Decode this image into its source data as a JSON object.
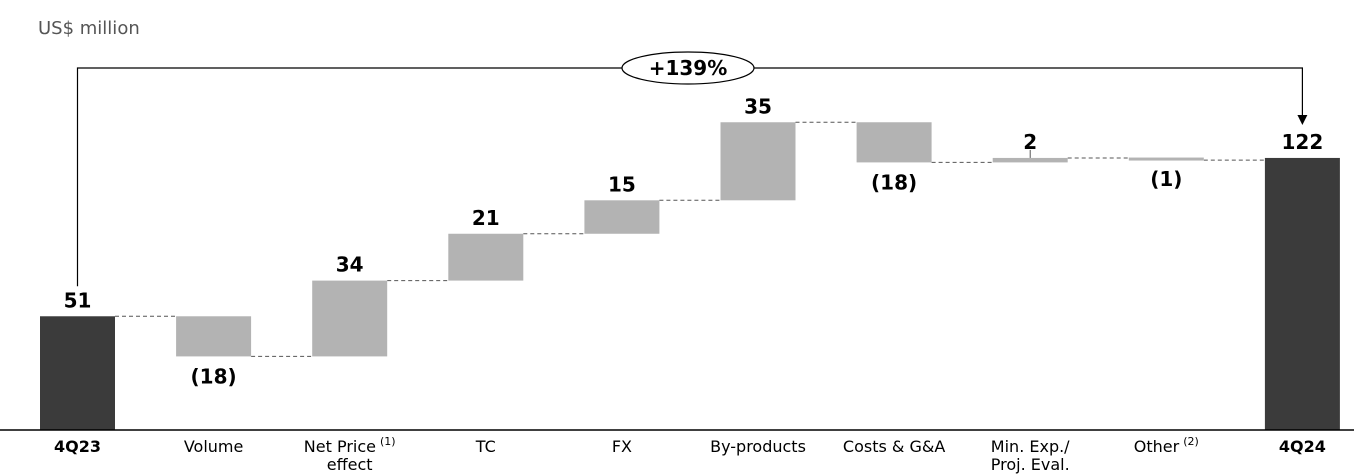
{
  "chart_data": {
    "type": "bar",
    "subtype": "waterfall",
    "unit": "US$ million",
    "categories": [
      {
        "label": "4Q23",
        "bold": true
      },
      {
        "label": "Volume"
      },
      {
        "label": "Net Price",
        "superscript": "(1)",
        "label2": "effect"
      },
      {
        "label": "TC"
      },
      {
        "label": "FX"
      },
      {
        "label": "By-products"
      },
      {
        "label": "Costs & G&A"
      },
      {
        "label": "Min. Exp./",
        "label2": "Proj. Eval."
      },
      {
        "label": "Other",
        "superscript": "(2)"
      },
      {
        "label": "4Q24",
        "bold": true
      }
    ],
    "values": [
      51,
      -18,
      34,
      21,
      15,
      35,
      -18,
      2,
      -1,
      122
    ],
    "kinds": [
      "total",
      "delta",
      "delta",
      "delta",
      "delta",
      "delta",
      "delta",
      "delta",
      "delta",
      "total"
    ],
    "value_labels": [
      "51",
      "(18)",
      "34",
      "21",
      "15",
      "35",
      "(18)",
      "2",
      "(1)",
      "122"
    ],
    "change_annotation": "+139%",
    "colors": {
      "total": "#3b3b3b",
      "delta": "#b3b3b3",
      "connector": "#555555",
      "axis": "#000000"
    },
    "grid": false
  }
}
